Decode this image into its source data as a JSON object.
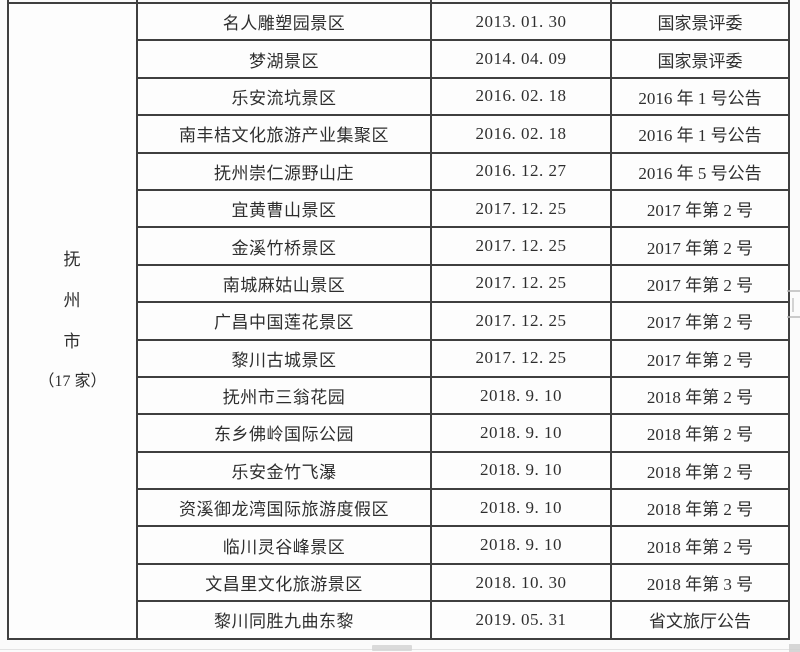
{
  "colors": {
    "border": "#3f3f3f",
    "text": "#2e2e2e",
    "cell_background": "#fdfdfd",
    "page_background": "#fbfbfb"
  },
  "table": {
    "city_cell": {
      "chars": [
        "抚",
        "州",
        "市"
      ],
      "count": "（17 家）"
    },
    "rows": [
      {
        "name": "名人雕塑园景区",
        "date": "2013. 01. 30",
        "notice": "国家景评委"
      },
      {
        "name": "梦湖景区",
        "date": "2014. 04. 09",
        "notice": "国家景评委"
      },
      {
        "name": "乐安流坑景区",
        "date": "2016. 02. 18",
        "notice": "2016 年 1 号公告"
      },
      {
        "name": "南丰桔文化旅游产业集聚区",
        "date": "2016. 02. 18",
        "notice": "2016 年 1 号公告"
      },
      {
        "name": "抚州崇仁源野山庄",
        "date": "2016. 12. 27",
        "notice": "2016 年 5 号公告"
      },
      {
        "name": "宜黄曹山景区",
        "date": "2017. 12. 25",
        "notice": "2017 年第 2 号"
      },
      {
        "name": "金溪竹桥景区",
        "date": "2017. 12. 25",
        "notice": "2017 年第 2 号"
      },
      {
        "name": "南城麻姑山景区",
        "date": "2017. 12. 25",
        "notice": "2017 年第 2 号"
      },
      {
        "name": "广昌中国莲花景区",
        "date": "2017. 12. 25",
        "notice": "2017 年第 2 号"
      },
      {
        "name": "黎川古城景区",
        "date": "2017. 12. 25",
        "notice": "2017 年第 2 号"
      },
      {
        "name": "抚州市三翁花园",
        "date": "2018. 9. 10",
        "notice": "2018 年第 2 号"
      },
      {
        "name": "东乡佛岭国际公园",
        "date": "2018. 9. 10",
        "notice": "2018 年第 2 号"
      },
      {
        "name": "乐安金竹飞瀑",
        "date": "2018. 9. 10",
        "notice": "2018 年第 2 号"
      },
      {
        "name": "资溪御龙湾国际旅游度假区",
        "date": "2018. 9. 10",
        "notice": "2018 年第 2 号"
      },
      {
        "name": "临川灵谷峰景区",
        "date": "2018. 9. 10",
        "notice": "2018 年第 2 号"
      },
      {
        "name": "文昌里文化旅游景区",
        "date": "2018. 10. 30",
        "notice": "2018 年第 3 号"
      },
      {
        "name": "黎川同胜九曲东黎",
        "date": "2019. 05. 31",
        "notice": "省文旅厅公告"
      }
    ]
  }
}
